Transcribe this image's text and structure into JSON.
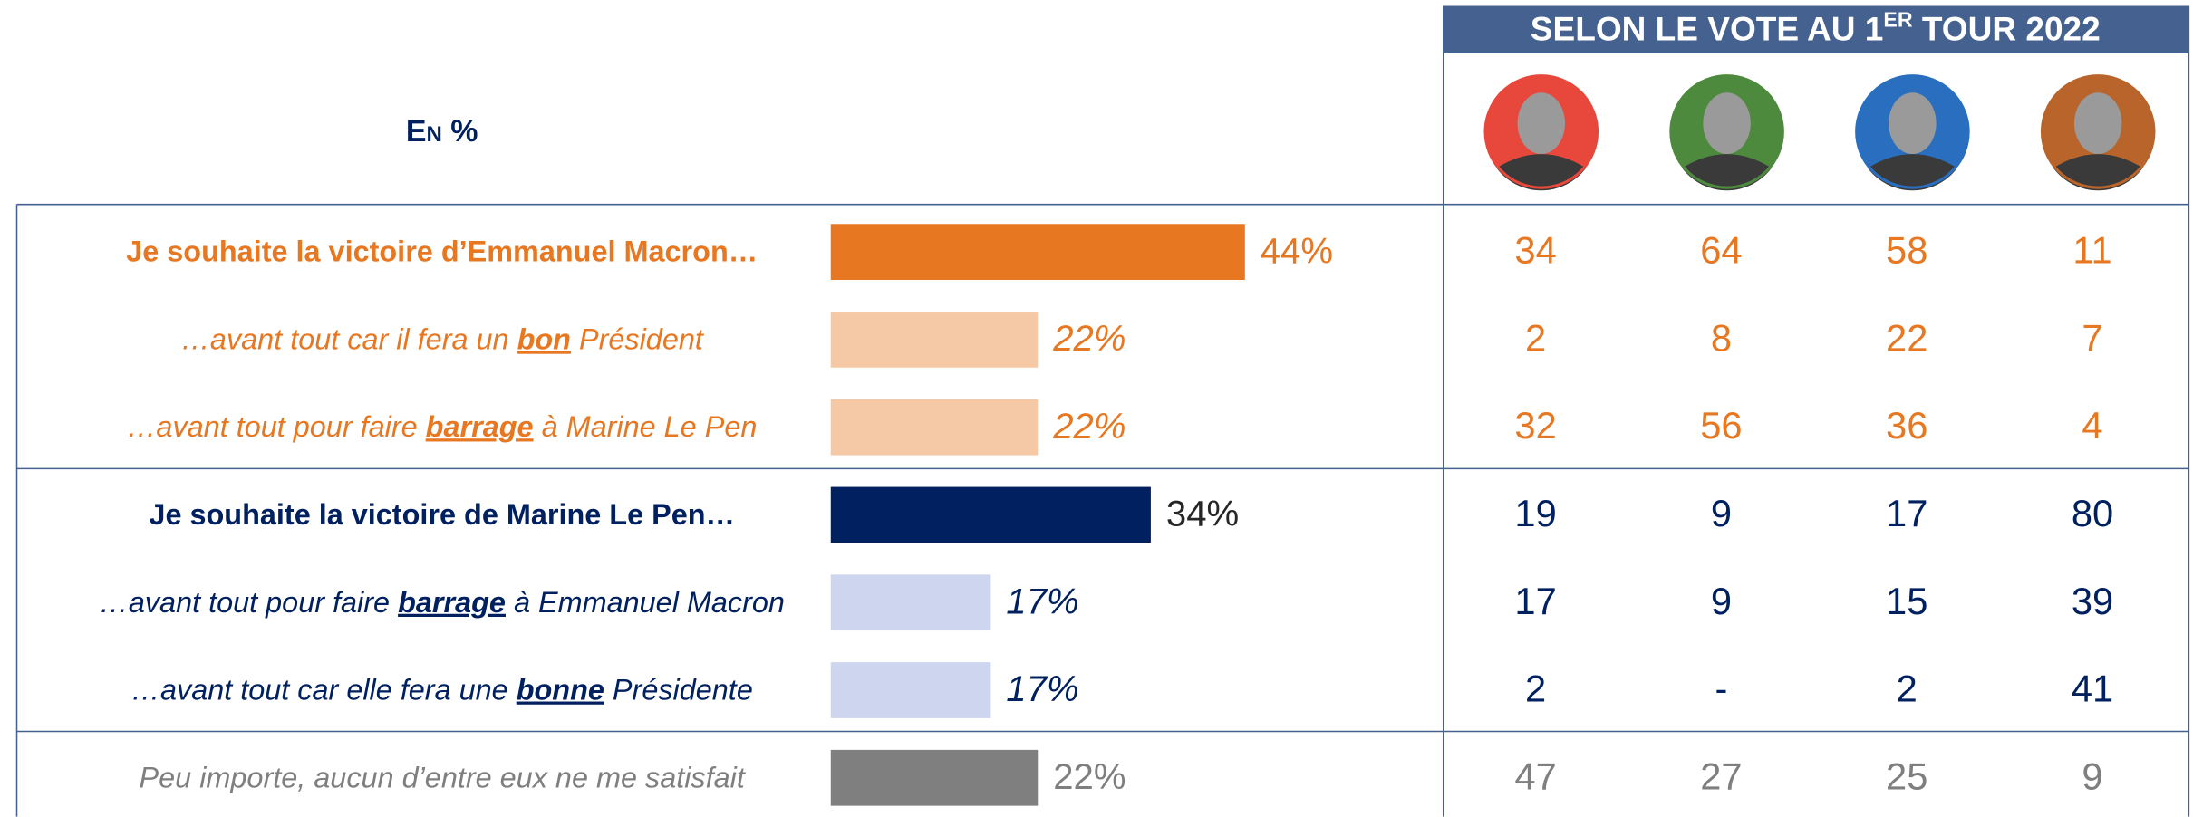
{
  "unit_label": "En %",
  "chart_data": {
    "type": "bar",
    "categories": [
      [
        "Je souhaite la victoire d’Emmanuel Macron…"
      ],
      [
        "…avant tout car il fera un ",
        "bon",
        " Président"
      ],
      [
        "…avant tout pour faire ",
        "barrage",
        " à Marine Le Pen"
      ],
      [
        "Je souhaite la victoire de Marine Le Pen…"
      ],
      [
        "…avant tout pour faire ",
        "barrage",
        " à Emmanuel Macron"
      ],
      [
        "…avant tout car elle fera une ",
        "bonne",
        " Présidente"
      ],
      [
        "Peu importe, aucun d’entre eux ne me satisfait"
      ]
    ],
    "emphasis_part": [
      null,
      1,
      1,
      null,
      1,
      1,
      null
    ],
    "headline": [
      true,
      false,
      false,
      true,
      false,
      false,
      false
    ],
    "values": [
      44,
      22,
      22,
      34,
      17,
      17,
      22
    ],
    "value_labels": [
      "44%",
      "22%",
      "22%",
      "34%",
      "17%",
      "17%",
      "22%"
    ],
    "colors": [
      "#E87722",
      "#F5C9A5",
      "#F5C9A5",
      "#002060",
      "#CDD5EF",
      "#CDD5EF",
      "#7F7F7F"
    ],
    "text_colors": [
      "#E87722",
      "#E87722",
      "#E87722",
      "#002060",
      "#002060",
      "#002060",
      "#7F7F7F"
    ],
    "value_label_colors": [
      "#E87722",
      "#E87722",
      "#E87722",
      "#262626",
      "#002060",
      "#002060",
      "#7F7F7F"
    ]
  },
  "breakdown": {
    "title": [
      "SELON LE VOTE AU 1",
      "ER",
      " TOUR 2022"
    ],
    "portrait_colors": [
      "#E8473B",
      "#4E8A3E",
      "#2A6FBF",
      "#B8642A"
    ],
    "rows": [
      [
        34,
        64,
        58,
        11
      ],
      [
        2,
        8,
        22,
        7
      ],
      [
        32,
        56,
        36,
        4
      ],
      [
        19,
        9,
        17,
        80
      ],
      [
        17,
        9,
        15,
        39
      ],
      [
        2,
        "-",
        2,
        41
      ],
      [
        47,
        27,
        25,
        9
      ]
    ]
  }
}
